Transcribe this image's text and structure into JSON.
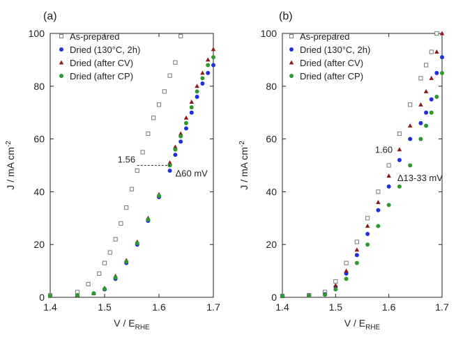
{
  "chart_data": [
    {
      "panel_label": "(a)",
      "type": "scatter",
      "xlabel": "V / E",
      "xlabel_sub": "RHE",
      "ylabel": "J / mA cm",
      "ylabel_sup": "-2",
      "xlim": [
        1.4,
        1.7
      ],
      "ylim": [
        0,
        100
      ],
      "xticks": [
        "1.4",
        "1.5",
        "1.6",
        "1.7"
      ],
      "yticks": [
        "0",
        "20",
        "40",
        "60",
        "80",
        "100"
      ],
      "grid": false,
      "legend_position": "top-left",
      "series": [
        {
          "name": "As-prepared",
          "marker": "open-square",
          "color": "#777777",
          "x": [
            1.4,
            1.45,
            1.47,
            1.49,
            1.5,
            1.51,
            1.52,
            1.53,
            1.54,
            1.55,
            1.56,
            1.57,
            1.58,
            1.59,
            1.6,
            1.61,
            1.62,
            1.63,
            1.64
          ],
          "y": [
            0.8,
            2,
            5,
            9,
            13,
            17,
            22,
            28,
            34,
            41,
            48,
            55,
            62,
            68,
            73,
            78,
            84,
            89,
            99
          ]
        },
        {
          "name": "Dried (130°C, 2h)",
          "marker": "circle",
          "color": "#1f2fe0",
          "x": [
            1.4,
            1.45,
            1.48,
            1.5,
            1.52,
            1.54,
            1.56,
            1.58,
            1.6,
            1.62,
            1.63,
            1.64,
            1.65,
            1.66,
            1.67,
            1.68,
            1.69,
            1.7
          ],
          "y": [
            0.5,
            0.8,
            1.5,
            3,
            7,
            13,
            20,
            29,
            38,
            48,
            54,
            59,
            64,
            70,
            76,
            81,
            85,
            88
          ]
        },
        {
          "name": "Dried (after CV)",
          "marker": "triangle",
          "color": "#8b1a1a",
          "x": [
            1.4,
            1.45,
            1.48,
            1.5,
            1.52,
            1.54,
            1.56,
            1.58,
            1.6,
            1.62,
            1.63,
            1.64,
            1.65,
            1.66,
            1.67,
            1.68,
            1.69,
            1.7
          ],
          "y": [
            0.5,
            0.8,
            1.5,
            3.5,
            8,
            14,
            21,
            30,
            39,
            51,
            57,
            62,
            68,
            74,
            80,
            85,
            90,
            94
          ]
        },
        {
          "name": "Dried (after CP)",
          "marker": "circle",
          "color": "#2e9a2e",
          "x": [
            1.4,
            1.45,
            1.48,
            1.5,
            1.52,
            1.54,
            1.56,
            1.58,
            1.6,
            1.62,
            1.63,
            1.64,
            1.65,
            1.66,
            1.67,
            1.68,
            1.69,
            1.7
          ],
          "y": [
            0.5,
            0.8,
            1.5,
            3.2,
            7.5,
            13.5,
            20.5,
            29.5,
            38.5,
            50,
            56,
            61,
            66,
            72,
            78,
            83,
            88,
            91
          ]
        }
      ],
      "annotations": {
        "value_label": "1.56",
        "delta_label": "Δ60 mV",
        "dashed_y": 50,
        "dashed_x": [
          1.56,
          1.62
        ]
      }
    },
    {
      "panel_label": "(b)",
      "type": "scatter",
      "xlabel": "V / E",
      "xlabel_sub": "RHE",
      "ylabel": "J / mA cm",
      "ylabel_sup": "-2",
      "xlim": [
        1.4,
        1.7
      ],
      "ylim": [
        0,
        100
      ],
      "xticks": [
        "1.4",
        "1.5",
        "1.6",
        "1.7"
      ],
      "yticks": [
        "0",
        "20",
        "40",
        "60",
        "80",
        "100"
      ],
      "grid": false,
      "legend_position": "top-left",
      "series": [
        {
          "name": "As-prepared",
          "marker": "open-square",
          "color": "#777777",
          "x": [
            1.4,
            1.45,
            1.48,
            1.5,
            1.52,
            1.54,
            1.56,
            1.58,
            1.6,
            1.62,
            1.64,
            1.66,
            1.67,
            1.68,
            1.69
          ],
          "y": [
            0.5,
            0.8,
            2,
            6,
            13,
            21,
            30,
            40,
            50,
            62,
            73,
            83,
            88,
            93,
            100
          ]
        },
        {
          "name": "Dried (130°C, 2h)",
          "marker": "circle",
          "color": "#1f2fe0",
          "x": [
            1.4,
            1.45,
            1.48,
            1.5,
            1.52,
            1.54,
            1.56,
            1.58,
            1.6,
            1.62,
            1.64,
            1.66,
            1.67,
            1.68,
            1.69,
            1.7
          ],
          "y": [
            0.5,
            0.6,
            1.2,
            4,
            9,
            16,
            24,
            33,
            42,
            52,
            60,
            66,
            70,
            75,
            85,
            91
          ]
        },
        {
          "name": "Dried (after CV)",
          "marker": "triangle",
          "color": "#8b1a1a",
          "x": [
            1.4,
            1.45,
            1.48,
            1.5,
            1.52,
            1.54,
            1.56,
            1.58,
            1.6,
            1.62,
            1.64,
            1.66,
            1.67,
            1.68,
            1.69,
            1.7
          ],
          "y": [
            0.5,
            0.6,
            1.2,
            4.5,
            10,
            18,
            27,
            36,
            46,
            56,
            65,
            73,
            78,
            83,
            93,
            100
          ]
        },
        {
          "name": "Dried (after CP)",
          "marker": "circle",
          "color": "#2e9a2e",
          "x": [
            1.4,
            1.45,
            1.48,
            1.5,
            1.52,
            1.54,
            1.56,
            1.58,
            1.6,
            1.62,
            1.64,
            1.66,
            1.67,
            1.68,
            1.69,
            1.7
          ],
          "y": [
            0.5,
            0.6,
            1.0,
            3,
            7,
            13,
            20,
            27,
            35,
            42,
            50,
            60,
            65,
            70,
            76,
            85
          ]
        }
      ],
      "annotations": {
        "value_label": "1.60",
        "delta_label": "Δ13-33 mV"
      }
    }
  ]
}
